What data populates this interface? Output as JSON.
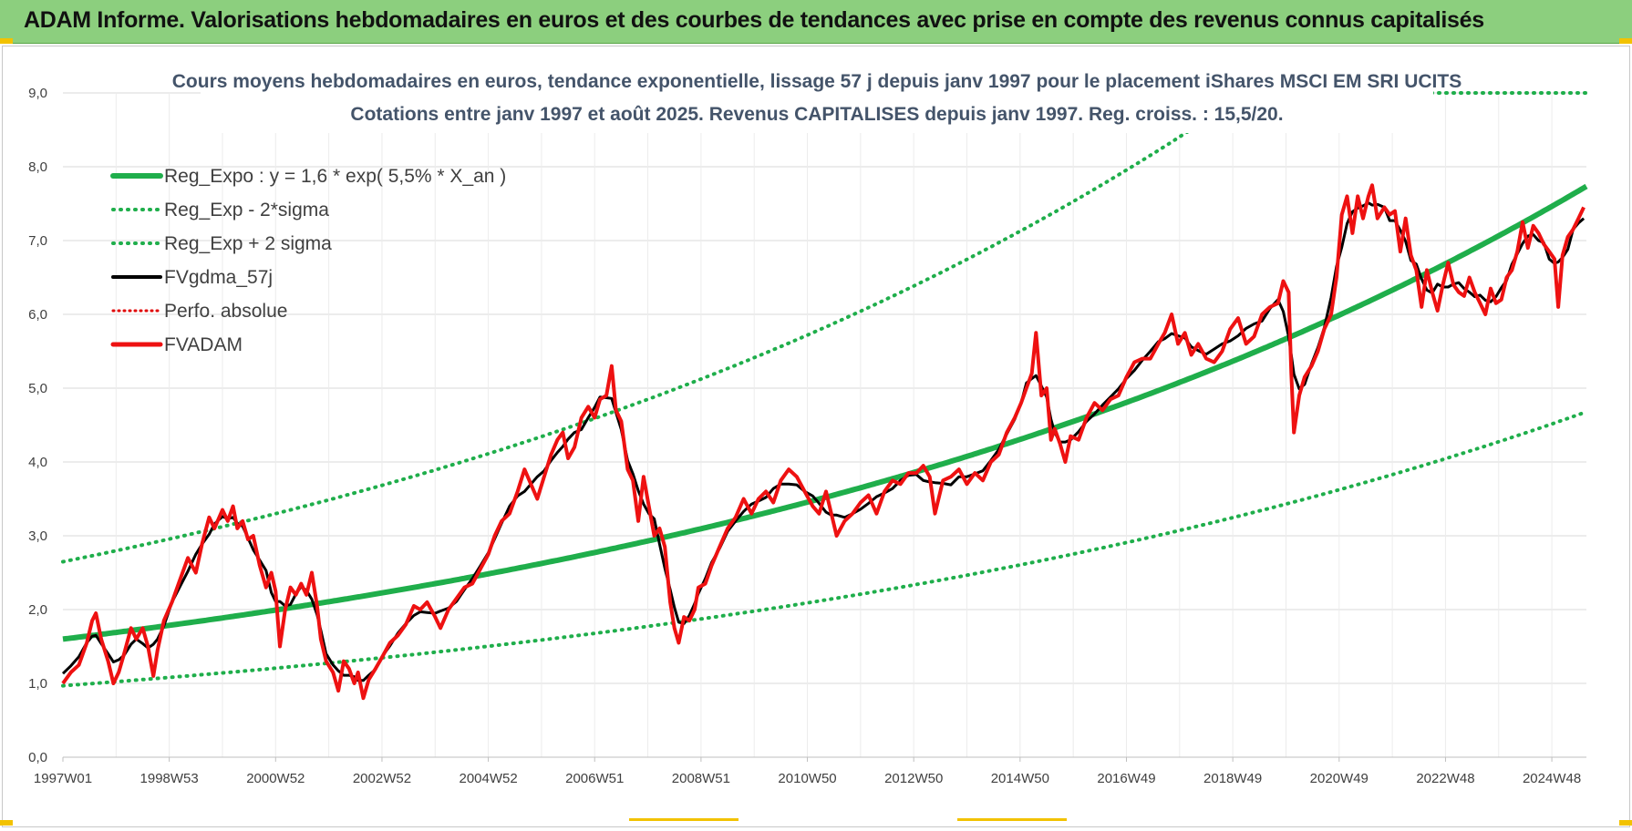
{
  "banner": {
    "title": "ADAM Informe. Valorisations hebdomadaires en euros et des courbes de tendances avec prise en compte des revenus connus capitalisés"
  },
  "colors": {
    "banner_bg": "#8ccf7e",
    "reg_expo": "#1fae4b",
    "fvgdma": "#000000",
    "perfo": "#e00000",
    "fvadam": "#ee1111",
    "title_text": "#44546a"
  },
  "chart_data": {
    "type": "line",
    "title_line1": "Cours moyens hebdomadaires en euros, tendance exponentielle, lissage 57 j depuis janv 1997 pour le placement iShares MSCI EM SRI UCITS",
    "title_line2": "Cotations entre janv 1997 et août 2025.  Revenus CAPITALISES depuis janv 1997. Reg. croiss. : 15,5/20.",
    "xlabel": "",
    "ylabel": "",
    "x_tick_labels": [
      "1997W01",
      "1998W53",
      "2000W52",
      "2002W52",
      "2004W52",
      "2006W51",
      "2008W51",
      "2010W50",
      "2012W50",
      "2014W50",
      "2016W49",
      "2018W49",
      "2020W49",
      "2022W48",
      "2024W48"
    ],
    "y_tick_labels": [
      "0,0",
      "1,0",
      "2,0",
      "3,0",
      "4,0",
      "5,0",
      "6,0",
      "7,0",
      "8,0",
      "9,0"
    ],
    "ylim": [
      0,
      9
    ],
    "xlim_years": [
      1997.0,
      2025.65
    ],
    "grid": true,
    "legend_position": "top-left",
    "trend_formula": {
      "a": 1.6,
      "rate": 0.055,
      "lower_band_factor": 0.605,
      "upper_band_factor": 1.655
    },
    "series": [
      {
        "name": "Reg_Expo : y = 1,6 * exp( 5,5% *  X_an )",
        "style": "thick-green"
      },
      {
        "name": "Reg_Exp - 2*sigma",
        "style": "dotted-green"
      },
      {
        "name": "Reg_Exp + 2 sigma",
        "style": "dotted-green"
      },
      {
        "name": "FVgdma_57j",
        "style": "black"
      },
      {
        "name": "Perfo. absolue",
        "style": "dotted-red"
      },
      {
        "name": "FVADAM",
        "style": "red",
        "points": [
          [
            1997.0,
            1.0
          ],
          [
            1997.15,
            1.15
          ],
          [
            1997.3,
            1.25
          ],
          [
            1997.45,
            1.55
          ],
          [
            1997.55,
            1.85
          ],
          [
            1997.62,
            1.95
          ],
          [
            1997.72,
            1.6
          ],
          [
            1997.85,
            1.3
          ],
          [
            1997.95,
            1.0
          ],
          [
            1998.05,
            1.15
          ],
          [
            1998.15,
            1.4
          ],
          [
            1998.28,
            1.75
          ],
          [
            1998.38,
            1.6
          ],
          [
            1998.5,
            1.75
          ],
          [
            1998.6,
            1.5
          ],
          [
            1998.7,
            1.1
          ],
          [
            1998.78,
            1.45
          ],
          [
            1998.9,
            1.85
          ],
          [
            1999.05,
            2.1
          ],
          [
            1999.2,
            2.4
          ],
          [
            1999.35,
            2.7
          ],
          [
            1999.5,
            2.5
          ],
          [
            1999.62,
            2.9
          ],
          [
            1999.75,
            3.25
          ],
          [
            1999.85,
            3.1
          ],
          [
            2000.0,
            3.35
          ],
          [
            2000.1,
            3.2
          ],
          [
            2000.2,
            3.4
          ],
          [
            2000.28,
            3.1
          ],
          [
            2000.38,
            3.2
          ],
          [
            2000.48,
            2.95
          ],
          [
            2000.58,
            3.0
          ],
          [
            2000.7,
            2.6
          ],
          [
            2000.82,
            2.3
          ],
          [
            2000.92,
            2.5
          ],
          [
            2001.0,
            2.25
          ],
          [
            2001.08,
            1.5
          ],
          [
            2001.18,
            2.0
          ],
          [
            2001.28,
            2.3
          ],
          [
            2001.38,
            2.2
          ],
          [
            2001.48,
            2.35
          ],
          [
            2001.58,
            2.2
          ],
          [
            2001.68,
            2.5
          ],
          [
            2001.78,
            2.05
          ],
          [
            2001.85,
            1.6
          ],
          [
            2001.95,
            1.3
          ],
          [
            2002.08,
            1.15
          ],
          [
            2002.18,
            0.9
          ],
          [
            2002.28,
            1.3
          ],
          [
            2002.38,
            1.2
          ],
          [
            2002.48,
            1.0
          ],
          [
            2002.55,
            1.15
          ],
          [
            2002.65,
            0.8
          ],
          [
            2002.75,
            1.05
          ],
          [
            2002.88,
            1.2
          ],
          [
            2003.0,
            1.35
          ],
          [
            2003.15,
            1.55
          ],
          [
            2003.3,
            1.65
          ],
          [
            2003.45,
            1.8
          ],
          [
            2003.6,
            2.05
          ],
          [
            2003.72,
            2.0
          ],
          [
            2003.85,
            2.1
          ],
          [
            2004.0,
            1.9
          ],
          [
            2004.1,
            1.75
          ],
          [
            2004.25,
            2.0
          ],
          [
            2004.4,
            2.15
          ],
          [
            2004.55,
            2.3
          ],
          [
            2004.7,
            2.35
          ],
          [
            2004.85,
            2.55
          ],
          [
            2005.0,
            2.75
          ],
          [
            2005.12,
            3.0
          ],
          [
            2005.25,
            3.2
          ],
          [
            2005.4,
            3.3
          ],
          [
            2005.55,
            3.6
          ],
          [
            2005.68,
            3.9
          ],
          [
            2005.8,
            3.7
          ],
          [
            2005.92,
            3.5
          ],
          [
            2006.05,
            3.8
          ],
          [
            2006.18,
            4.1
          ],
          [
            2006.3,
            4.3
          ],
          [
            2006.4,
            4.4
          ],
          [
            2006.5,
            4.05
          ],
          [
            2006.62,
            4.2
          ],
          [
            2006.75,
            4.6
          ],
          [
            2006.88,
            4.75
          ],
          [
            2007.0,
            4.6
          ],
          [
            2007.1,
            4.85
          ],
          [
            2007.22,
            4.9
          ],
          [
            2007.32,
            5.3
          ],
          [
            2007.4,
            4.7
          ],
          [
            2007.5,
            4.55
          ],
          [
            2007.62,
            3.9
          ],
          [
            2007.72,
            3.75
          ],
          [
            2007.82,
            3.2
          ],
          [
            2007.92,
            3.8
          ],
          [
            2008.02,
            3.4
          ],
          [
            2008.12,
            3.0
          ],
          [
            2008.22,
            3.1
          ],
          [
            2008.32,
            2.85
          ],
          [
            2008.42,
            2.1
          ],
          [
            2008.5,
            1.75
          ],
          [
            2008.58,
            1.55
          ],
          [
            2008.68,
            1.9
          ],
          [
            2008.78,
            1.85
          ],
          [
            2008.88,
            2.0
          ],
          [
            2008.95,
            2.3
          ],
          [
            2009.08,
            2.35
          ],
          [
            2009.2,
            2.6
          ],
          [
            2009.35,
            2.85
          ],
          [
            2009.5,
            3.1
          ],
          [
            2009.65,
            3.25
          ],
          [
            2009.8,
            3.5
          ],
          [
            2009.95,
            3.3
          ],
          [
            2010.08,
            3.5
          ],
          [
            2010.22,
            3.6
          ],
          [
            2010.36,
            3.45
          ],
          [
            2010.5,
            3.75
          ],
          [
            2010.65,
            3.9
          ],
          [
            2010.8,
            3.8
          ],
          [
            2010.95,
            3.6
          ],
          [
            2011.1,
            3.4
          ],
          [
            2011.22,
            3.3
          ],
          [
            2011.35,
            3.6
          ],
          [
            2011.45,
            3.3
          ],
          [
            2011.55,
            3.0
          ],
          [
            2011.7,
            3.2
          ],
          [
            2011.85,
            3.3
          ],
          [
            2012.0,
            3.45
          ],
          [
            2012.15,
            3.55
          ],
          [
            2012.3,
            3.3
          ],
          [
            2012.45,
            3.6
          ],
          [
            2012.6,
            3.75
          ],
          [
            2012.75,
            3.7
          ],
          [
            2012.9,
            3.85
          ],
          [
            2013.05,
            3.85
          ],
          [
            2013.18,
            3.95
          ],
          [
            2013.3,
            3.8
          ],
          [
            2013.4,
            3.3
          ],
          [
            2013.55,
            3.75
          ],
          [
            2013.7,
            3.8
          ],
          [
            2013.85,
            3.9
          ],
          [
            2014.0,
            3.7
          ],
          [
            2014.15,
            3.85
          ],
          [
            2014.3,
            3.75
          ],
          [
            2014.45,
            4.0
          ],
          [
            2014.6,
            4.1
          ],
          [
            2014.75,
            4.4
          ],
          [
            2014.9,
            4.6
          ],
          [
            2015.02,
            4.8
          ],
          [
            2015.12,
            5.0
          ],
          [
            2015.22,
            5.2
          ],
          [
            2015.3,
            5.75
          ],
          [
            2015.4,
            4.9
          ],
          [
            2015.5,
            5.0
          ],
          [
            2015.58,
            4.3
          ],
          [
            2015.65,
            4.45
          ],
          [
            2015.75,
            4.25
          ],
          [
            2015.85,
            4.0
          ],
          [
            2015.95,
            4.35
          ],
          [
            2016.1,
            4.3
          ],
          [
            2016.25,
            4.6
          ],
          [
            2016.4,
            4.8
          ],
          [
            2016.55,
            4.7
          ],
          [
            2016.7,
            4.85
          ],
          [
            2016.85,
            4.9
          ],
          [
            2017.0,
            5.15
          ],
          [
            2017.15,
            5.35
          ],
          [
            2017.3,
            5.4
          ],
          [
            2017.45,
            5.4
          ],
          [
            2017.6,
            5.6
          ],
          [
            2017.72,
            5.75
          ],
          [
            2017.85,
            6.0
          ],
          [
            2017.97,
            5.6
          ],
          [
            2018.1,
            5.75
          ],
          [
            2018.22,
            5.45
          ],
          [
            2018.35,
            5.6
          ],
          [
            2018.5,
            5.4
          ],
          [
            2018.65,
            5.35
          ],
          [
            2018.8,
            5.5
          ],
          [
            2018.95,
            5.8
          ],
          [
            2019.1,
            5.95
          ],
          [
            2019.25,
            5.6
          ],
          [
            2019.4,
            5.7
          ],
          [
            2019.55,
            6.0
          ],
          [
            2019.7,
            6.1
          ],
          [
            2019.85,
            6.15
          ],
          [
            2019.95,
            6.45
          ],
          [
            2020.05,
            6.3
          ],
          [
            2020.1,
            5.2
          ],
          [
            2020.15,
            4.4
          ],
          [
            2020.25,
            4.9
          ],
          [
            2020.35,
            5.15
          ],
          [
            2020.48,
            5.3
          ],
          [
            2020.6,
            5.5
          ],
          [
            2020.72,
            5.8
          ],
          [
            2020.85,
            6.0
          ],
          [
            2020.95,
            6.5
          ],
          [
            2021.05,
            7.35
          ],
          [
            2021.15,
            7.6
          ],
          [
            2021.25,
            7.1
          ],
          [
            2021.35,
            7.6
          ],
          [
            2021.45,
            7.3
          ],
          [
            2021.55,
            7.6
          ],
          [
            2021.62,
            7.75
          ],
          [
            2021.72,
            7.3
          ],
          [
            2021.85,
            7.45
          ],
          [
            2021.95,
            7.35
          ],
          [
            2022.05,
            7.4
          ],
          [
            2022.15,
            6.85
          ],
          [
            2022.25,
            7.3
          ],
          [
            2022.35,
            6.8
          ],
          [
            2022.45,
            6.6
          ],
          [
            2022.55,
            6.1
          ],
          [
            2022.65,
            6.6
          ],
          [
            2022.75,
            6.3
          ],
          [
            2022.85,
            6.05
          ],
          [
            2022.95,
            6.4
          ],
          [
            2023.05,
            6.7
          ],
          [
            2023.15,
            6.4
          ],
          [
            2023.25,
            6.3
          ],
          [
            2023.35,
            6.25
          ],
          [
            2023.45,
            6.5
          ],
          [
            2023.55,
            6.3
          ],
          [
            2023.65,
            6.15
          ],
          [
            2023.75,
            6.0
          ],
          [
            2023.85,
            6.35
          ],
          [
            2023.95,
            6.15
          ],
          [
            2024.05,
            6.2
          ],
          [
            2024.15,
            6.5
          ],
          [
            2024.25,
            6.6
          ],
          [
            2024.35,
            6.85
          ],
          [
            2024.45,
            7.25
          ],
          [
            2024.55,
            6.9
          ],
          [
            2024.65,
            7.2
          ],
          [
            2024.75,
            7.1
          ],
          [
            2024.85,
            6.95
          ],
          [
            2024.95,
            6.85
          ],
          [
            2025.05,
            6.75
          ],
          [
            2025.12,
            6.1
          ],
          [
            2025.2,
            6.8
          ],
          [
            2025.3,
            7.05
          ],
          [
            2025.4,
            7.15
          ],
          [
            2025.5,
            7.3
          ],
          [
            2025.6,
            7.45
          ]
        ]
      }
    ]
  }
}
